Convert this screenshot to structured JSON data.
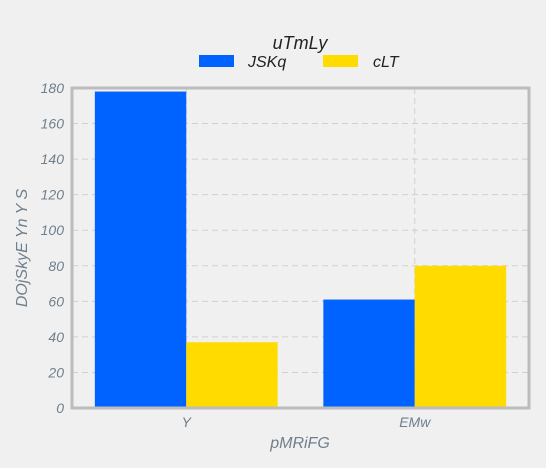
{
  "chart_data": {
    "type": "bar",
    "categories": [
      "Y",
      "EMw"
    ],
    "series": [
      {
        "name": "JSKq",
        "values": [
          178,
          61
        ],
        "color": "#0062ff"
      },
      {
        "name": "cLT",
        "values": [
          37,
          80
        ],
        "color": "#ffdb00"
      }
    ],
    "xlabel": "pMRiFG",
    "ylabel": "DOjSkyE Yn Y S",
    "ylim": [
      0,
      180
    ],
    "yticks": [
      0,
      20,
      40,
      60,
      80,
      100,
      120,
      140,
      160,
      180
    ],
    "legend_title": "uTmLy",
    "legend_position": "top-center",
    "grid": true
  }
}
